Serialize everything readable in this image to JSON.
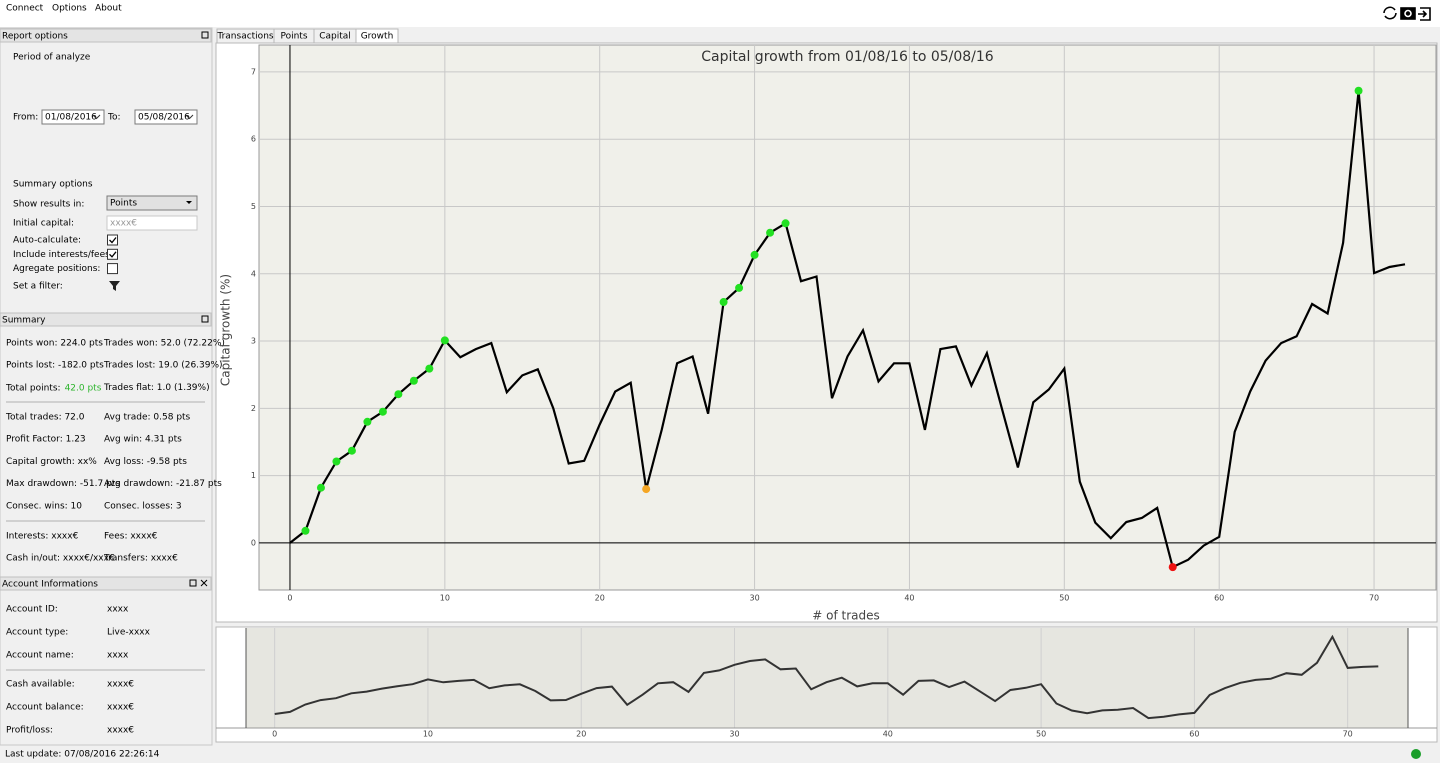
{
  "menu": [
    "Connect",
    "Options",
    "About"
  ],
  "report_options": {
    "header": "Report options",
    "period_label": "Period of analyze",
    "from_label": "From:",
    "from": "01/08/2016",
    "to_label": "To:",
    "to": "05/08/2016",
    "summary_options": "Summary options",
    "show_results_label": "Show results in:",
    "show_results": "Points",
    "initial_capital_label": "Initial capital:",
    "initial_capital_placeholder": "xxxx€",
    "checkboxes": [
      {
        "label": "Auto-calculate:",
        "checked": true
      },
      {
        "label": "Include interests/fees:",
        "checked": true
      },
      {
        "label": "Agregate positions:",
        "checked": false
      }
    ],
    "filter_label": "Set a filter:"
  },
  "summary": {
    "header": "Summary",
    "groups": [
      [
        [
          "Points won: 224.0 pts",
          "Trades won: 52.0 (72.22%)"
        ],
        [
          "Points lost: -182.0 pts",
          "Trades lost: 19.0 (26.39%)"
        ],
        [
          {
            "label": "Total points:",
            "value": "42.0 pts",
            "color": "#2db52d"
          },
          "Trades flat: 1.0 (1.39%)"
        ]
      ],
      [
        [
          "Total trades: 72.0",
          "Avg trade: 0.58 pts"
        ],
        [
          "Profit Factor: 1.23",
          "Avg win: 4.31 pts"
        ],
        [
          "Capital growth: xx%",
          "Avg loss: -9.58 pts"
        ],
        [
          "Max drawdown: -51.7 pts",
          "Avg drawdown: -21.87 pts"
        ],
        [
          "Consec. wins: 10",
          "Consec. losses: 3"
        ]
      ],
      [
        [
          "Interests: xxxx€",
          "Fees: xxxx€"
        ],
        [
          "Cash in/out: xxxx€/xxx€",
          "Transfers: xxxx€"
        ]
      ]
    ]
  },
  "account": {
    "header": "Account Informations",
    "groups": [
      [
        [
          "Account ID:",
          "xxxx"
        ],
        [
          "Account type:",
          "Live-xxxx"
        ],
        [
          "Account name:",
          "xxxx"
        ]
      ],
      [
        [
          "Cash available:",
          "xxxx€"
        ],
        [
          "Account balance:",
          "xxxx€"
        ],
        [
          "Profit/loss:",
          "xxxx€"
        ]
      ]
    ]
  },
  "tabs": [
    "Transactions",
    "Points",
    "Capital",
    "Growth"
  ],
  "active_tab": 3,
  "status": "Last update: 07/08/2016 22:26:14",
  "chart_data": {
    "type": "line",
    "title": "Capital growth from 01/08/16 to 05/08/16",
    "x_label": "# of trades",
    "y_label": "Capital growth (%)",
    "x": [
      0,
      1,
      2,
      3,
      4,
      5,
      6,
      7,
      8,
      9,
      10,
      11,
      12,
      13,
      14,
      15,
      16,
      17,
      18,
      19,
      20,
      21,
      22,
      23,
      24,
      25,
      26,
      27,
      28,
      29,
      30,
      31,
      32,
      33,
      34,
      35,
      36,
      37,
      38,
      39,
      40,
      41,
      42,
      43,
      44,
      45,
      46,
      47,
      48,
      49,
      50,
      51,
      52,
      53,
      54,
      55,
      56,
      57,
      58,
      59,
      60,
      61,
      62,
      63,
      64,
      65,
      66,
      67,
      68,
      69,
      70,
      71,
      72
    ],
    "values": [
      0,
      0.18,
      0.82,
      1.21,
      1.37,
      1.8,
      1.95,
      2.21,
      2.41,
      2.59,
      3.01,
      2.76,
      2.88,
      2.97,
      2.24,
      2.49,
      2.58,
      2.0,
      1.18,
      1.22,
      1.76,
      2.25,
      2.38,
      0.8,
      1.68,
      2.67,
      2.77,
      1.92,
      3.58,
      3.79,
      4.28,
      4.61,
      4.75,
      3.89,
      3.96,
      2.15,
      2.77,
      3.16,
      2.4,
      2.67,
      2.67,
      1.68,
      2.88,
      2.92,
      2.34,
      2.82,
      1.97,
      1.12,
      2.09,
      2.28,
      2.59,
      0.91,
      0.3,
      0.07,
      0.31,
      0.37,
      0.52,
      -0.36,
      -0.25,
      -0.04,
      0.09,
      1.65,
      2.25,
      2.71,
      2.97,
      3.07,
      3.55,
      3.41,
      4.46,
      6.72,
      4.01,
      4.1,
      4.14
    ],
    "color": "#000000",
    "point_colors": [
      null,
      "#22e022",
      "#22e022",
      "#22e022",
      "#22e022",
      "#22e022",
      "#22e022",
      "#22e022",
      "#22e022",
      "#22e022",
      "#22e022",
      null,
      null,
      null,
      null,
      null,
      null,
      null,
      null,
      null,
      null,
      null,
      null,
      "#f5a623",
      null,
      null,
      null,
      null,
      "#22e022",
      "#22e022",
      "#22e022",
      "#22e022",
      "#22e022",
      null,
      null,
      null,
      null,
      null,
      null,
      null,
      null,
      null,
      null,
      null,
      null,
      null,
      null,
      null,
      null,
      null,
      null,
      null,
      null,
      null,
      null,
      null,
      null,
      "#ee1111",
      null,
      null,
      null,
      null,
      null,
      null,
      null,
      null,
      null,
      null,
      null,
      "#22e022",
      null,
      null,
      null
    ],
    "xlim": [
      -2,
      74
    ],
    "ylim": [
      -0.7,
      7.4
    ],
    "xticks": [
      0,
      10,
      20,
      30,
      40,
      50,
      60,
      70
    ],
    "yticks": [
      0,
      1,
      2,
      3,
      4,
      5,
      6,
      7
    ],
    "grid": true,
    "overview_color": "#333333"
  }
}
